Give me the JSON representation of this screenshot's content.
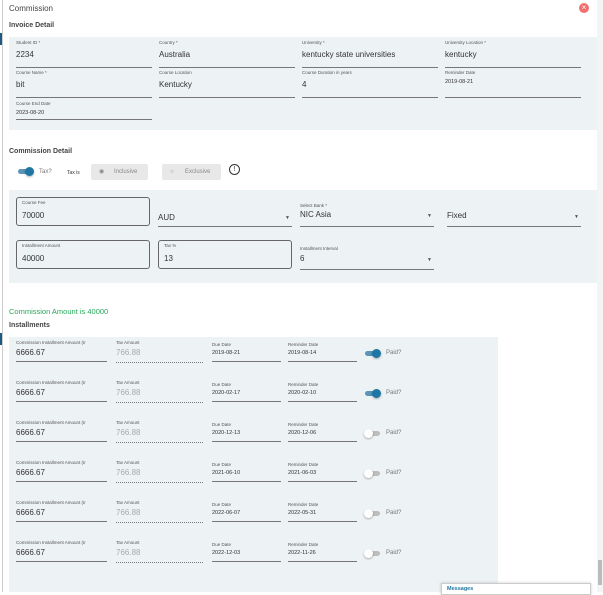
{
  "title": "Commission",
  "invoice": {
    "heading": "Invoice Detail",
    "fields": [
      {
        "label": "Student ID *",
        "value": "2234"
      },
      {
        "label": "Country *",
        "value": "Australia"
      },
      {
        "label": "University *",
        "value": "kentucky state universities"
      },
      {
        "label": "University Location *",
        "value": "kentucky"
      },
      {
        "label": "Course Name *",
        "value": "bit"
      },
      {
        "label": "Course Location",
        "value": "Kentucky"
      },
      {
        "label": "Course Duration in years",
        "value": "4"
      },
      {
        "label": "Reminder Date",
        "value": "2019-08-21"
      },
      {
        "label": "Course End Date",
        "value": "2023-08-20"
      }
    ]
  },
  "commission": {
    "heading": "Commission Detail",
    "tax_toggle_label": "Tax?",
    "tax_on": true,
    "tax_is_label": "Tax is",
    "inclusive": "Inclusive",
    "exclusive": "Exclusive",
    "selected": "Inclusive",
    "course_fee": {
      "label": "Course Fee",
      "value": "70000"
    },
    "currency": "AUD",
    "bank": {
      "label": "Select Bank *",
      "value": "NIC Asia"
    },
    "type": "Fixed",
    "installment_amount": {
      "label": "Installment Amount",
      "value": "40000"
    },
    "tax_percent": {
      "label": "Tax %",
      "value": "13"
    },
    "installment_interval": {
      "label": "Installment Interval",
      "value": "6"
    }
  },
  "summary": "Commission Amount is 40000",
  "installments": {
    "heading": "Installments",
    "amount_label": "Commission Installment Amount (Ir",
    "tax_label": "Tax Amount",
    "due_label": "Due Date",
    "reminder_label": "Reminder Date",
    "paid_label": "Paid?",
    "rows": [
      {
        "amount": "6666.67",
        "tax": "766.88",
        "due": "2019-08-21",
        "reminder": "2019-08-14",
        "paid": true
      },
      {
        "amount": "6666.67",
        "tax": "766.88",
        "due": "2020-02-17",
        "reminder": "2020-02-10",
        "paid": true
      },
      {
        "amount": "6666.67",
        "tax": "766.88",
        "due": "2020-12-13",
        "reminder": "2020-12-06",
        "paid": false
      },
      {
        "amount": "6666.67",
        "tax": "766.88",
        "due": "2021-06-10",
        "reminder": "2021-06-03",
        "paid": false
      },
      {
        "amount": "6666.67",
        "tax": "766.88",
        "due": "2022-06-07",
        "reminder": "2022-05-31",
        "paid": false
      },
      {
        "amount": "6666.67",
        "tax": "766.88",
        "due": "2022-12-03",
        "reminder": "2022-11-26",
        "paid": false
      }
    ]
  },
  "messages": "Messages",
  "colors": {
    "accent": "#1f76a3",
    "success": "#27a85a",
    "panel": "#edf2f5",
    "close": "#f07070"
  }
}
